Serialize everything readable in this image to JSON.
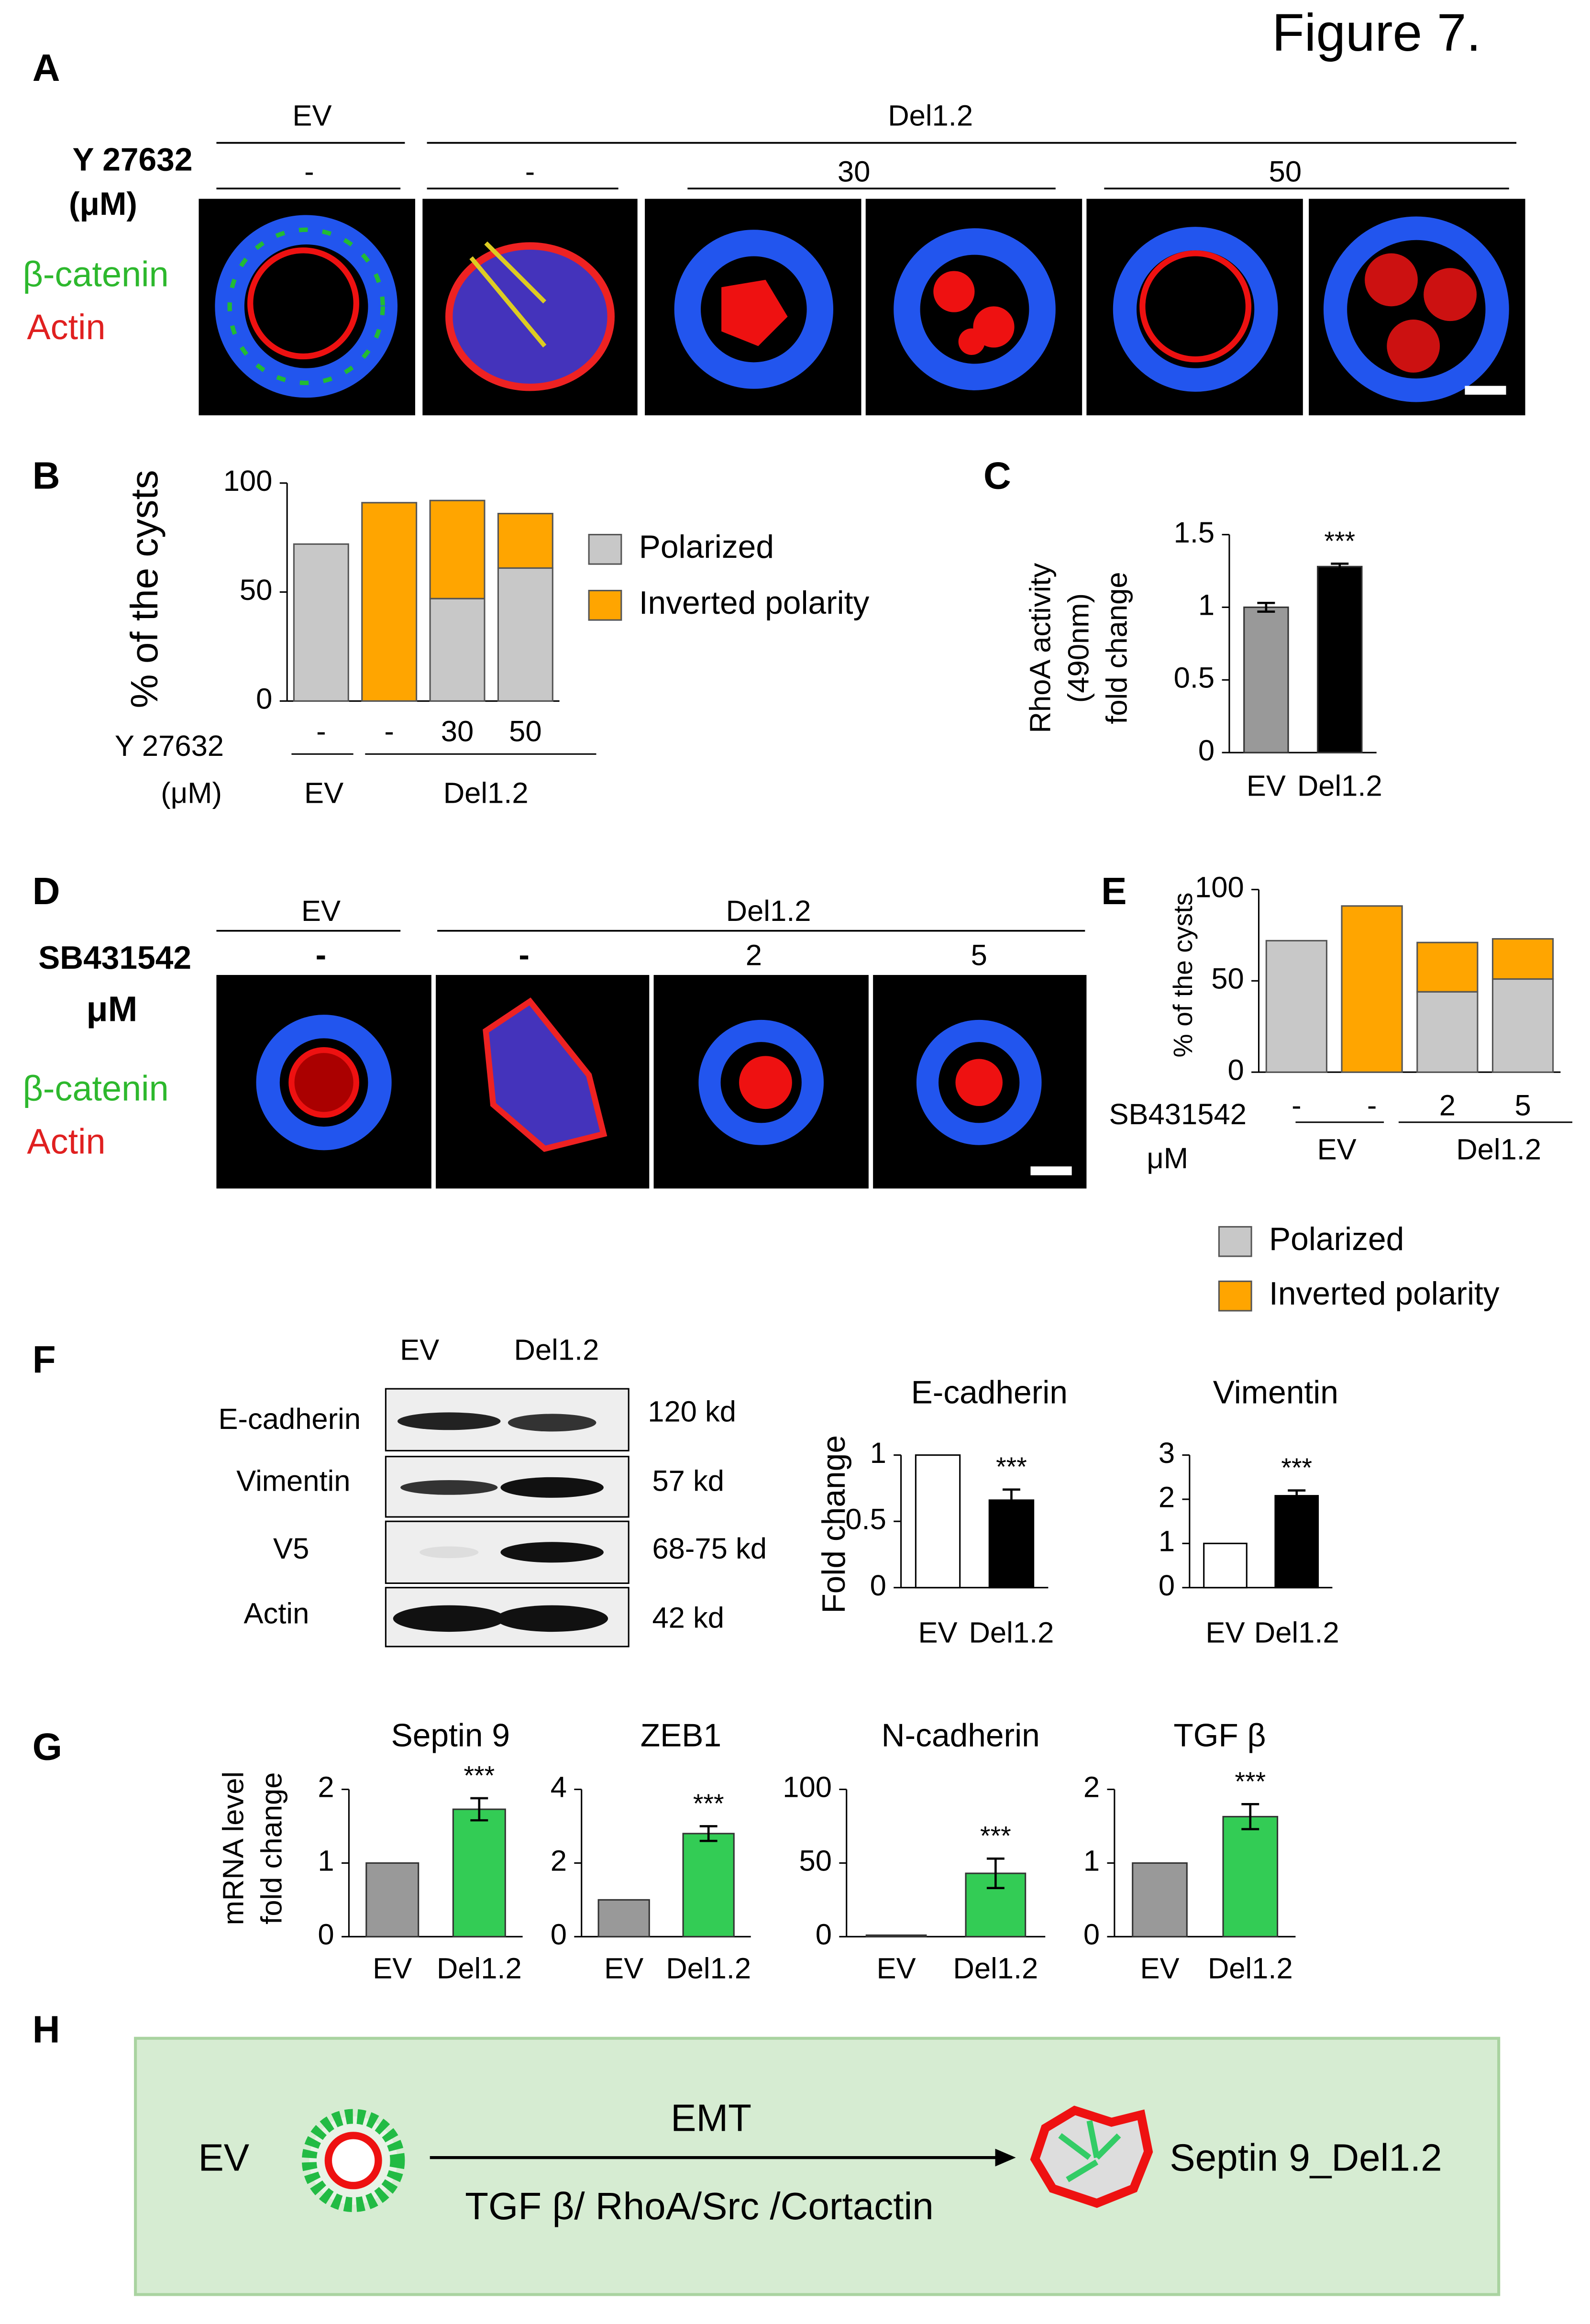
{
  "title": "Figure 7.",
  "panels": [
    "A",
    "B",
    "C",
    "D",
    "E",
    "F",
    "G",
    "H"
  ],
  "panel_a": {
    "groups": [
      "EV",
      "Del1.2"
    ],
    "treatment": [
      "Y 27632",
      "(μM)"
    ],
    "doses": [
      "-",
      "-",
      "30",
      "50"
    ],
    "stains": [
      "β-catenin",
      "Actin"
    ]
  },
  "panel_d": {
    "groups": [
      "EV",
      "Del1.2"
    ],
    "treatment": [
      "SB431542",
      "μM"
    ],
    "doses": [
      "-",
      "-",
      "2",
      "5"
    ],
    "stains": [
      "β-catenin",
      "Actin"
    ]
  },
  "panel_f": {
    "lanes": [
      "EV",
      "Del1.2"
    ],
    "proteins": [
      "E-cadherin",
      "Vimentin",
      "V5",
      "Actin"
    ],
    "sizes": [
      "120 kd",
      "57 kd",
      "68-75 kd",
      "42 kd"
    ]
  },
  "panel_h": {
    "left": "EV",
    "arrow_top": "EMT",
    "arrow_bottom": "TGF β/ RhoA/Src /Cortactin",
    "right": "Septin 9_Del1.2"
  },
  "chart_data": [
    {
      "type": "bar",
      "ylabel": "% of the cysts",
      "categories": [
        "-",
        "-",
        "30",
        "50"
      ],
      "xlabel": [
        "Y 27632",
        "(μM)"
      ],
      "groups": [
        "EV",
        "Del1.2"
      ],
      "series": [
        {
          "name": "Polarized",
          "color": "#c8c8c8",
          "values": [
            72,
            0,
            47,
            61
          ]
        },
        {
          "name": "Inverted polarity",
          "color": "#ffa500",
          "values": [
            0,
            91,
            45,
            25
          ]
        }
      ],
      "ylim": [
        0,
        100
      ],
      "yticks": [
        0,
        50,
        100
      ],
      "legend": "right",
      "edgecolor": "#555"
    },
    {
      "type": "bar",
      "ylabel": [
        "RhoA activity",
        "(490nm)",
        "fold change"
      ],
      "categories": [
        "EV",
        "Del1.2"
      ],
      "values": [
        1.0,
        1.28
      ],
      "errors": [
        0.03,
        0.02
      ],
      "colors": [
        "#999999",
        "#000000"
      ],
      "ylim": [
        0,
        1.5
      ],
      "yticks": [
        0,
        0.5,
        1,
        1.5
      ],
      "annotation": "***",
      "edgecolor": "#333"
    },
    {
      "type": "bar",
      "ylabel": "% of the cysts",
      "categories": [
        "-",
        "-",
        "2",
        "5"
      ],
      "xlabel": [
        "SB431542",
        "μM"
      ],
      "groups": [
        "EV",
        "Del1.2"
      ],
      "series": [
        {
          "name": "Polarized",
          "color": "#c8c8c8",
          "values": [
            72,
            0,
            44,
            51
          ]
        },
        {
          "name": "Inverted polarity",
          "color": "#ffa500",
          "values": [
            0,
            91,
            27,
            22
          ]
        }
      ],
      "ylim": [
        0,
        100
      ],
      "yticks": [
        0,
        50,
        100
      ],
      "legend": "bottom",
      "edgecolor": "#555"
    },
    {
      "type": "bar",
      "title": "E-cadherin",
      "ylabel": "Fold change",
      "categories": [
        "EV",
        "Del1.2"
      ],
      "values": [
        1,
        0.66
      ],
      "errors": [
        null,
        0.08
      ],
      "colors": [
        "#ffffff",
        "#000000"
      ],
      "ylim": [
        0,
        1
      ],
      "yticks": [
        0,
        0.5,
        1
      ],
      "annotation": "***",
      "edgecolor": "#000"
    },
    {
      "type": "bar",
      "title": "Vimentin",
      "categories": [
        "EV",
        "Del1.2"
      ],
      "values": [
        1,
        2.08
      ],
      "errors": [
        null,
        0.12
      ],
      "colors": [
        "#ffffff",
        "#000000"
      ],
      "ylim": [
        0,
        3
      ],
      "yticks": [
        0,
        1,
        2,
        3
      ],
      "annotation": "***",
      "edgecolor": "#000"
    },
    {
      "type": "bar",
      "title": "Septin 9",
      "ylabel": [
        "mRNA  level",
        "fold change"
      ],
      "categories": [
        "EV",
        "Del1.2"
      ],
      "values": [
        1,
        1.73
      ],
      "errors": [
        null,
        0.15
      ],
      "colors": [
        "#999999",
        "#33cc55"
      ],
      "ylim": [
        0,
        2
      ],
      "yticks": [
        0,
        1,
        2
      ],
      "annotation": "***",
      "edgecolor": "#333"
    },
    {
      "type": "bar",
      "title": "ZEB1",
      "categories": [
        "EV",
        "Del1.2"
      ],
      "values": [
        1,
        2.8
      ],
      "errors": [
        null,
        0.2
      ],
      "colors": [
        "#999999",
        "#33cc55"
      ],
      "ylim": [
        0,
        4
      ],
      "yticks": [
        0,
        2,
        4
      ],
      "annotation": "***",
      "edgecolor": "#333"
    },
    {
      "type": "bar",
      "title": "N-cadherin",
      "categories": [
        "EV",
        "Del1.2"
      ],
      "values": [
        1,
        43
      ],
      "errors": [
        null,
        10
      ],
      "colors": [
        "#999999",
        "#33cc55"
      ],
      "ylim": [
        0,
        100
      ],
      "yticks": [
        0,
        50,
        100
      ],
      "annotation": "***",
      "edgecolor": "#333"
    },
    {
      "type": "bar",
      "title": "TGF  β",
      "categories": [
        "EV",
        "Del1.2"
      ],
      "values": [
        1,
        1.63
      ],
      "errors": [
        null,
        0.17
      ],
      "colors": [
        "#999999",
        "#33cc55"
      ],
      "ylim": [
        0,
        2
      ],
      "yticks": [
        0,
        1,
        2
      ],
      "annotation": "***",
      "edgecolor": "#333"
    }
  ]
}
